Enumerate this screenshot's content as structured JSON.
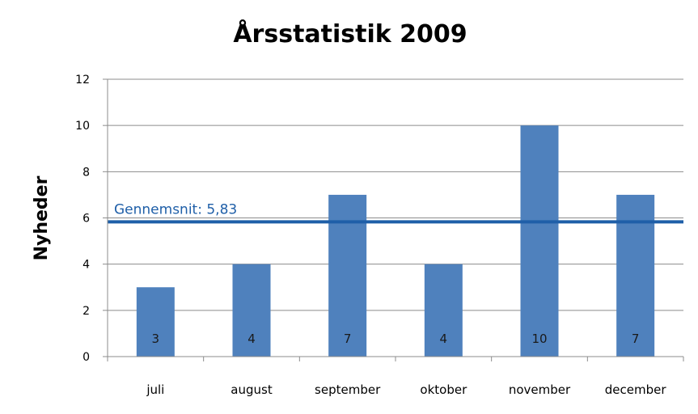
{
  "chart_data": {
    "type": "bar",
    "title": "Årsstatistik 2009",
    "xlabel": "",
    "ylabel": "Nyheder",
    "categories": [
      "juli",
      "august",
      "september",
      "oktober",
      "november",
      "december"
    ],
    "values": [
      3,
      4,
      7,
      4,
      10,
      7
    ],
    "data_labels": [
      "3",
      "4",
      "7",
      "4",
      "10",
      "7"
    ],
    "ylim": [
      0,
      12
    ],
    "yticks": [
      0,
      2,
      4,
      6,
      8,
      10,
      12
    ],
    "grid": true,
    "average": {
      "value": 5.83,
      "label": "Gennemsnit: 5,83"
    },
    "colors": {
      "bar": "#4f81bd",
      "average_line": "#1f5fa8",
      "grid": "#8c8c8c",
      "axis": "#8c8c8c"
    }
  }
}
